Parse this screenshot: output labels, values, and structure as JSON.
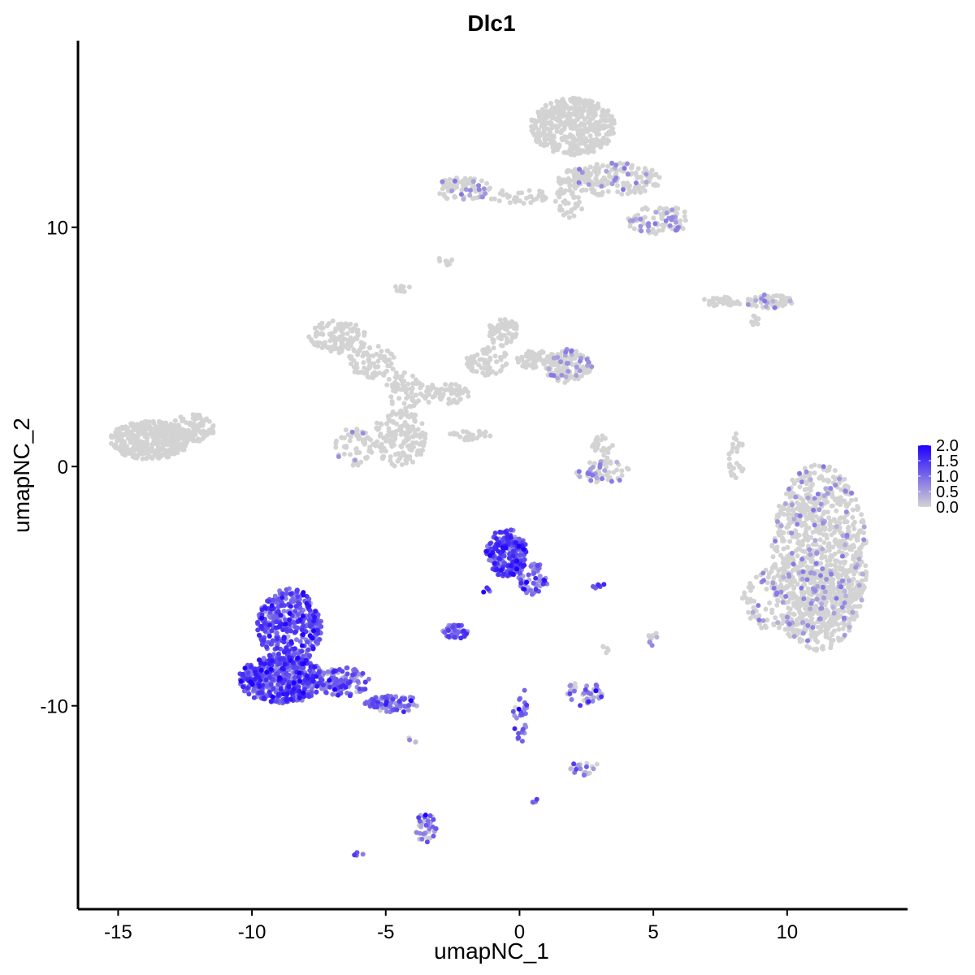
{
  "chart_data": {
    "type": "scatter",
    "title": "Dlc1",
    "xlabel": "umapNC_1",
    "ylabel": "umapNC_2",
    "xlim": [
      -16.5,
      14.5
    ],
    "ylim": [
      -18.5,
      17.8
    ],
    "xticks": [
      -15,
      -10,
      -5,
      0,
      5,
      10
    ],
    "xtick_labels": [
      "-15",
      "-10",
      "-5",
      "0",
      "5",
      "10"
    ],
    "yticks": [
      -10,
      0,
      10
    ],
    "ytick_labels": [
      "-10",
      "0",
      "10"
    ],
    "grid": false,
    "legend": {
      "position": "right",
      "type": "colorbar",
      "min": 0.0,
      "max": 2.0,
      "ticks": [
        0.0,
        0.5,
        1.0,
        1.5,
        2.0
      ],
      "tick_labels": [
        "0.0",
        "0.5",
        "1.0",
        "1.5",
        "2.0"
      ]
    },
    "color_low": "#d3d3d3",
    "color_high": "#1f00ff",
    "clusters": [
      {
        "cx": 11.2,
        "cy": -3.8,
        "rx": 1.8,
        "ry": 3.9,
        "n": 950,
        "expr": 0.01,
        "spread": 0.9
      },
      {
        "cx": 10.4,
        "cy": -5.6,
        "rx": 2.1,
        "ry": 1.6,
        "n": 250,
        "expr": 0.01,
        "spread": 0.9
      },
      {
        "cx": 2.0,
        "cy": 14.2,
        "rx": 1.6,
        "ry": 1.2,
        "n": 450,
        "expr": 0.0,
        "spread": 0.9
      },
      {
        "cx": 3.5,
        "cy": 12.0,
        "rx": 1.8,
        "ry": 0.7,
        "n": 180,
        "expr": 0.01,
        "spread": 0.9
      },
      {
        "cx": 5.2,
        "cy": 10.3,
        "rx": 1.2,
        "ry": 0.6,
        "n": 90,
        "expr": 0.03,
        "spread": 0.9
      },
      {
        "cx": 1.9,
        "cy": 11.4,
        "rx": 0.6,
        "ry": 1.0,
        "n": 60,
        "expr": 0.0,
        "spread": 0.9
      },
      {
        "cx": -2.1,
        "cy": 11.6,
        "rx": 1.0,
        "ry": 0.5,
        "n": 90,
        "expr": 0.01,
        "spread": 0.9
      },
      {
        "cx": 0.0,
        "cy": 11.3,
        "rx": 1.2,
        "ry": 0.3,
        "n": 40,
        "expr": 0.0,
        "spread": 0.9
      },
      {
        "cx": -2.8,
        "cy": 8.6,
        "rx": 0.3,
        "ry": 0.2,
        "n": 10,
        "expr": 0.0,
        "spread": 0.9
      },
      {
        "cx": -4.4,
        "cy": 7.5,
        "rx": 0.3,
        "ry": 0.3,
        "n": 10,
        "expr": 0.0,
        "spread": 0.9
      },
      {
        "cx": 9.3,
        "cy": 6.9,
        "rx": 0.9,
        "ry": 0.3,
        "n": 70,
        "expr": 0.01,
        "spread": 0.9
      },
      {
        "cx": 7.6,
        "cy": 6.9,
        "rx": 0.8,
        "ry": 0.2,
        "n": 30,
        "expr": 0.0,
        "spread": 0.9
      },
      {
        "cx": 8.7,
        "cy": 6.0,
        "rx": 0.3,
        "ry": 0.3,
        "n": 10,
        "expr": 0.0,
        "spread": 0.9
      },
      {
        "cx": -6.8,
        "cy": 5.4,
        "rx": 1.1,
        "ry": 0.7,
        "n": 120,
        "expr": 0.0,
        "spread": 0.9
      },
      {
        "cx": -5.5,
        "cy": 4.4,
        "rx": 0.9,
        "ry": 0.7,
        "n": 80,
        "expr": 0.0,
        "spread": 0.9
      },
      {
        "cx": -4.5,
        "cy": 1.2,
        "rx": 1.0,
        "ry": 1.2,
        "n": 160,
        "expr": 0.0,
        "spread": 0.9
      },
      {
        "cx": -6.2,
        "cy": 0.8,
        "rx": 0.7,
        "ry": 0.8,
        "n": 60,
        "expr": 0.01,
        "spread": 0.9
      },
      {
        "cx": -4.3,
        "cy": 3.2,
        "rx": 0.7,
        "ry": 0.8,
        "n": 60,
        "expr": 0.0,
        "spread": 0.9
      },
      {
        "cx": -2.8,
        "cy": 3.0,
        "rx": 0.9,
        "ry": 0.5,
        "n": 60,
        "expr": 0.0,
        "spread": 0.9
      },
      {
        "cx": -1.2,
        "cy": 4.4,
        "rx": 0.8,
        "ry": 0.6,
        "n": 60,
        "expr": 0.0,
        "spread": 0.9
      },
      {
        "cx": -0.6,
        "cy": 5.6,
        "rx": 0.6,
        "ry": 0.6,
        "n": 60,
        "expr": 0.0,
        "spread": 0.9
      },
      {
        "cx": 1.8,
        "cy": 4.2,
        "rx": 0.9,
        "ry": 0.7,
        "n": 150,
        "expr": 0.02,
        "spread": 0.9
      },
      {
        "cx": 0.5,
        "cy": 4.5,
        "rx": 0.6,
        "ry": 0.4,
        "n": 50,
        "expr": 0.0,
        "spread": 0.9
      },
      {
        "cx": -1.8,
        "cy": 1.3,
        "rx": 0.9,
        "ry": 0.2,
        "n": 30,
        "expr": 0.0,
        "spread": 0.9
      },
      {
        "cx": -13.8,
        "cy": 1.1,
        "rx": 1.5,
        "ry": 0.8,
        "n": 380,
        "expr": 0.0,
        "spread": 0.9
      },
      {
        "cx": -12.2,
        "cy": 1.6,
        "rx": 0.8,
        "ry": 0.6,
        "n": 80,
        "expr": 0.0,
        "spread": 0.9
      },
      {
        "cx": 3.1,
        "cy": -0.2,
        "rx": 1.0,
        "ry": 0.5,
        "n": 60,
        "expr": 0.02,
        "spread": 0.9
      },
      {
        "cx": 3.1,
        "cy": 0.8,
        "rx": 0.4,
        "ry": 0.5,
        "n": 25,
        "expr": 0.0,
        "spread": 0.9
      },
      {
        "cx": 8.1,
        "cy": 0.4,
        "rx": 0.3,
        "ry": 1.0,
        "n": 30,
        "expr": 0.0,
        "spread": 0.9
      },
      {
        "cx": -0.5,
        "cy": -3.6,
        "rx": 0.8,
        "ry": 1.0,
        "n": 220,
        "expr": 1.3,
        "spread": 0.35
      },
      {
        "cx": 0.5,
        "cy": -4.7,
        "rx": 0.6,
        "ry": 0.7,
        "n": 60,
        "expr": 0.95,
        "spread": 0.4
      },
      {
        "cx": -2.4,
        "cy": -6.9,
        "rx": 0.5,
        "ry": 0.3,
        "n": 45,
        "expr": 0.95,
        "spread": 0.4
      },
      {
        "cx": -8.6,
        "cy": -6.7,
        "rx": 1.2,
        "ry": 1.6,
        "n": 380,
        "expr": 1.1,
        "spread": 0.4
      },
      {
        "cx": -8.9,
        "cy": -8.9,
        "rx": 1.6,
        "ry": 1.0,
        "n": 500,
        "expr": 1.15,
        "spread": 0.4
      },
      {
        "cx": -6.6,
        "cy": -9.0,
        "rx": 1.0,
        "ry": 0.6,
        "n": 130,
        "expr": 0.9,
        "spread": 0.5
      },
      {
        "cx": -4.8,
        "cy": -9.9,
        "rx": 1.0,
        "ry": 0.4,
        "n": 90,
        "expr": 0.8,
        "spread": 0.5
      },
      {
        "cx": 2.4,
        "cy": -9.5,
        "rx": 0.7,
        "ry": 0.5,
        "n": 50,
        "expr": 0.35,
        "spread": 0.5
      },
      {
        "cx": 2.4,
        "cy": -12.6,
        "rx": 0.6,
        "ry": 0.3,
        "n": 25,
        "expr": 0.3,
        "spread": 0.5
      },
      {
        "cx": -3.5,
        "cy": -15.1,
        "rx": 0.4,
        "ry": 0.6,
        "n": 35,
        "expr": 0.8,
        "spread": 0.5
      },
      {
        "cx": 0.0,
        "cy": -10.3,
        "rx": 0.3,
        "ry": 1.3,
        "n": 30,
        "expr": 0.8,
        "spread": 0.5
      },
      {
        "cx": 3.0,
        "cy": -5.0,
        "rx": 0.3,
        "ry": 0.1,
        "n": 8,
        "expr": 1.2,
        "spread": 0.4
      },
      {
        "cx": 5.0,
        "cy": -7.2,
        "rx": 0.2,
        "ry": 0.3,
        "n": 10,
        "expr": 0.2,
        "spread": 0.5
      },
      {
        "cx": 3.3,
        "cy": -7.6,
        "rx": 0.2,
        "ry": 0.2,
        "n": 5,
        "expr": 0.0,
        "spread": 0.5
      },
      {
        "cx": -6.0,
        "cy": -16.2,
        "rx": 0.2,
        "ry": 0.1,
        "n": 5,
        "expr": 1.0,
        "spread": 0.3
      },
      {
        "cx": 0.6,
        "cy": -14.0,
        "rx": 0.15,
        "ry": 0.1,
        "n": 4,
        "expr": 1.0,
        "spread": 0.3
      },
      {
        "cx": -4.1,
        "cy": -11.4,
        "rx": 0.3,
        "ry": 0.2,
        "n": 4,
        "expr": 0.2,
        "spread": 0.5
      },
      {
        "cx": -1.3,
        "cy": -5.2,
        "rx": 0.2,
        "ry": 0.2,
        "n": 4,
        "expr": 1.2,
        "spread": 0.4
      }
    ]
  }
}
